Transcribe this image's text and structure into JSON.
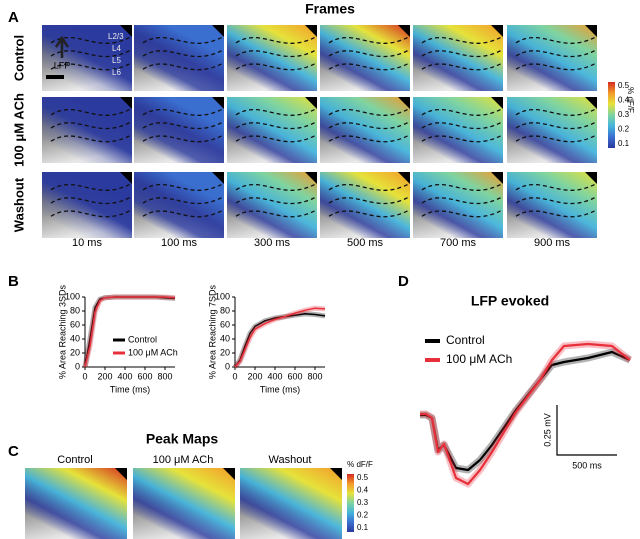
{
  "panel_labels": [
    "A",
    "B",
    "C",
    "D"
  ],
  "frames": {
    "title": "Frames",
    "rows": [
      "Control",
      "100 μM ACh",
      "Washout"
    ],
    "columns": [
      "10 ms",
      "100 ms",
      "300 ms",
      "500 ms",
      "700 ms",
      "900 ms"
    ],
    "layers": [
      "L2/3",
      "L4",
      "L5",
      "L6"
    ],
    "stim_label": "LFP",
    "colorbar": {
      "label": "% dF/F",
      "ticks": [
        0.5,
        0.4,
        0.3,
        0.2,
        0.1
      ]
    }
  },
  "peak_maps": {
    "title": "Peak Maps",
    "labels": [
      "Control",
      "100 μM ACh",
      "Washout"
    ],
    "colorbar": {
      "label": "% dF/F",
      "ticks": [
        0.5,
        0.4,
        0.3,
        0.2,
        0.1
      ]
    }
  },
  "chart_data": [
    {
      "type": "line",
      "ylabel": "% Area Reaching 3SDs",
      "xlabel": "Time (ms)",
      "x": [
        0,
        50,
        100,
        150,
        200,
        300,
        400,
        500,
        600,
        700,
        800,
        900
      ],
      "xlim": [
        0,
        900
      ],
      "ylim": [
        0,
        100
      ],
      "xticks": [
        0,
        200,
        400,
        600,
        800
      ],
      "yticks": [
        0,
        20,
        40,
        60,
        80,
        100
      ],
      "series": [
        {
          "name": "Control",
          "color": "#000000",
          "values": [
            0,
            40,
            85,
            97,
            99,
            100,
            100,
            100,
            100,
            100,
            99,
            98
          ]
        },
        {
          "name": "100 μM ACh",
          "color": "#e8303a",
          "values": [
            0,
            30,
            78,
            95,
            99,
            100,
            100,
            100,
            100,
            100,
            100,
            99
          ]
        }
      ]
    },
    {
      "type": "line",
      "ylabel": "% Area Reaching 7SDs",
      "xlabel": "Time (ms)",
      "x": [
        0,
        50,
        100,
        150,
        200,
        300,
        400,
        500,
        600,
        700,
        800,
        900
      ],
      "xlim": [
        0,
        900
      ],
      "ylim": [
        0,
        100
      ],
      "xticks": [
        0,
        200,
        400,
        600,
        800
      ],
      "yticks": [
        0,
        20,
        40,
        60,
        80,
        100
      ],
      "series": [
        {
          "color": "#000000",
          "values": [
            0,
            10,
            30,
            48,
            58,
            66,
            70,
            72,
            74,
            76,
            75,
            73
          ]
        },
        {
          "color": "#e8303a",
          "values": [
            0,
            8,
            25,
            42,
            54,
            62,
            68,
            72,
            77,
            81,
            84,
            83
          ]
        }
      ]
    },
    {
      "type": "trace",
      "title": "LFP evoked",
      "x_scale_label": "500 ms",
      "y_scale_label": "0.25 mV",
      "x": [
        0,
        50,
        100,
        150,
        200,
        300,
        400,
        500,
        600,
        800,
        1000,
        1100,
        1200,
        1400,
        1600,
        1750
      ],
      "series": [
        {
          "name": "Control",
          "color": "#000000",
          "values": [
            0.025,
            0.025,
            0.01,
            -0.15,
            -0.125,
            -0.24,
            -0.25,
            -0.2,
            -0.125,
            0.05,
            0.2,
            0.275,
            0.29,
            0.31,
            0.34,
            0.3
          ]
        },
        {
          "name": "100 μM ACh",
          "color": "#e8303a",
          "values": [
            0.03,
            0.03,
            0.01,
            -0.16,
            -0.12,
            -0.29,
            -0.32,
            -0.25,
            -0.16,
            0.04,
            0.2,
            0.3,
            0.37,
            0.38,
            0.37,
            0.3
          ]
        }
      ]
    }
  ]
}
